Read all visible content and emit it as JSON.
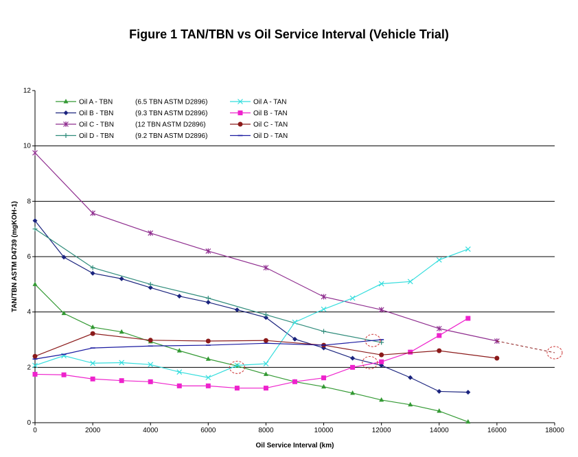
{
  "chart_data": {
    "type": "line",
    "title": "Figure 1 TAN/TBN vs Oil Service Interval (Vehicle Trial)",
    "xlabel": "Oil Service Interval (km)",
    "ylabel": "TAN/TBN ASTM D4739 (mgKOH-1)",
    "xlim": [
      0,
      18000
    ],
    "ylim": [
      0,
      12
    ],
    "xticks": [
      0,
      2000,
      4000,
      6000,
      8000,
      10000,
      12000,
      14000,
      16000,
      18000
    ],
    "yticks": [
      0,
      2,
      4,
      6,
      8,
      10,
      12
    ],
    "grid": "horizontal at y=2,4,6,8,10",
    "legend_position": "top-left",
    "series": [
      {
        "name": "Oil A - TBN",
        "note": "(6.5 TBN ASTM D2896)",
        "color": "#339933",
        "marker": "triangle",
        "x": [
          0,
          1000,
          2000,
          3000,
          4000,
          5000,
          6000,
          7000,
          8000,
          9000,
          10000,
          11000,
          12000,
          13000,
          14000,
          15000
        ],
        "y": [
          5.0,
          3.95,
          3.45,
          3.28,
          2.93,
          2.6,
          2.3,
          2.05,
          1.75,
          1.48,
          1.3,
          1.07,
          0.82,
          0.65,
          0.42,
          0.03
        ]
      },
      {
        "name": "Oil B - TBN",
        "note": "(9.3 TBN ASTM D2896)",
        "color": "#1a237e",
        "marker": "diamond",
        "x": [
          0,
          1000,
          2000,
          3000,
          4000,
          5000,
          6000,
          7000,
          8000,
          9000,
          10000,
          11000,
          12000,
          13000,
          14000,
          15000
        ],
        "y": [
          7.3,
          5.98,
          5.4,
          5.2,
          4.88,
          4.57,
          4.35,
          4.08,
          3.8,
          3.02,
          2.7,
          2.33,
          2.07,
          1.63,
          1.13,
          1.1
        ]
      },
      {
        "name": "Oil C - TBN",
        "note": "(12 TBN ASTM D2896)",
        "color": "#8e2c8e",
        "marker": "star",
        "x": [
          0,
          2000,
          4000,
          6000,
          8000,
          10000,
          12000,
          14000,
          16000
        ],
        "y": [
          9.75,
          7.57,
          6.85,
          6.2,
          5.6,
          4.55,
          4.08,
          3.4,
          2.95
        ]
      },
      {
        "name": "Oil D - TBN",
        "note": "(9.2 TBN ASTM D2896)",
        "color": "#2e8b7a",
        "marker": "plus",
        "x": [
          0,
          2000,
          4000,
          6000,
          8000,
          10000,
          12000
        ],
        "y": [
          7.0,
          5.6,
          5.0,
          4.5,
          3.9,
          3.3,
          2.9
        ]
      },
      {
        "name": "Oil A - TAN",
        "color": "#33dddd",
        "marker": "x",
        "x": [
          0,
          1000,
          2000,
          3000,
          4000,
          5000,
          6000,
          7000,
          8000,
          9000,
          10000,
          11000,
          12000,
          13000,
          14000,
          15000
        ],
        "y": [
          2.07,
          2.42,
          2.15,
          2.17,
          2.1,
          1.83,
          1.63,
          2.07,
          2.13,
          3.63,
          4.1,
          4.5,
          5.02,
          5.1,
          5.88,
          6.27
        ]
      },
      {
        "name": "Oil B - TAN",
        "color": "#ee22cc",
        "marker": "square",
        "x": [
          0,
          1000,
          2000,
          3000,
          4000,
          5000,
          6000,
          7000,
          8000,
          9000,
          10000,
          11000,
          12000,
          13000,
          14000,
          15000
        ],
        "y": [
          1.75,
          1.73,
          1.58,
          1.52,
          1.48,
          1.33,
          1.33,
          1.25,
          1.25,
          1.48,
          1.62,
          2.0,
          2.2,
          2.55,
          3.15,
          3.77
        ]
      },
      {
        "name": "Oil C - TAN",
        "color": "#8b1a1a",
        "marker": "circle",
        "x": [
          0,
          2000,
          4000,
          6000,
          8000,
          10000,
          12000,
          14000,
          16000
        ],
        "y": [
          2.4,
          3.22,
          2.98,
          2.95,
          2.97,
          2.8,
          2.45,
          2.6,
          2.33
        ]
      },
      {
        "name": "Oil D - TAN",
        "color": "#1a1aa0",
        "marker": "dash",
        "x": [
          0,
          1000,
          2000,
          4000,
          6000,
          8000,
          10000,
          12000
        ],
        "y": [
          2.3,
          2.47,
          2.7,
          2.77,
          2.8,
          2.87,
          2.8,
          3.0
        ]
      }
    ],
    "annotations": {
      "circles": [
        {
          "x": 7000,
          "y": 2.0
        },
        {
          "x": 11600,
          "y": 2.17
        },
        {
          "x": 11700,
          "y": 2.97
        },
        {
          "x": 18000,
          "y": 2.53
        }
      ],
      "dashed_extrapolation": {
        "x": [
          16000,
          18000
        ],
        "y": [
          2.95,
          2.53
        ]
      }
    }
  }
}
